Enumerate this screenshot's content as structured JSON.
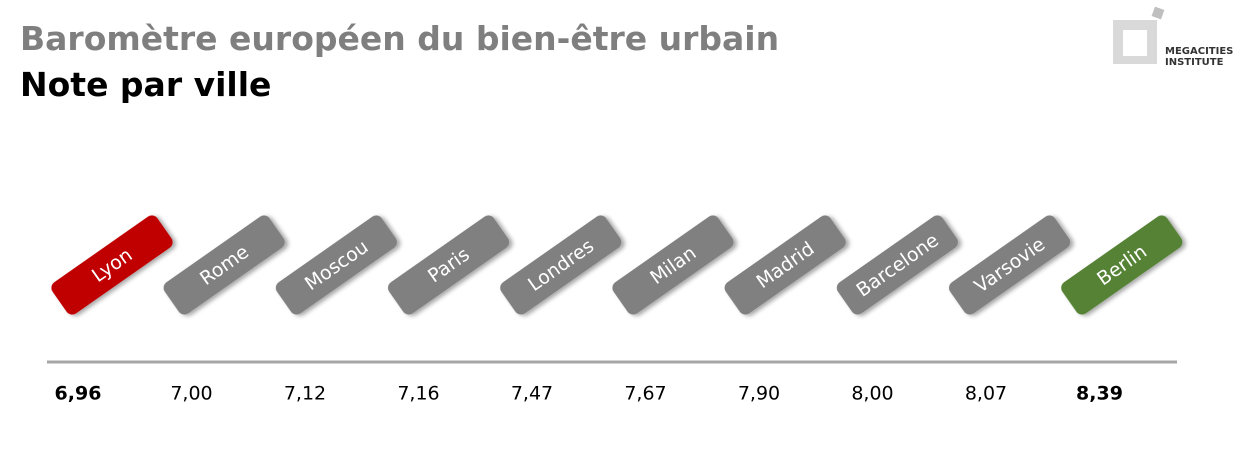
{
  "header": {
    "title": "Baromètre européen du bien-être urbain",
    "subtitle": "Note par ville"
  },
  "logo": {
    "lines": [
      "MEGACITIES",
      "INSTITUTE"
    ]
  },
  "cities": [
    {
      "name": "Lyon",
      "score": "6,96",
      "color": "#c00000"
    },
    {
      "name": "Rome",
      "score": "7,00",
      "color": "#808080"
    },
    {
      "name": "Moscou",
      "score": "7,12",
      "color": "#808080"
    },
    {
      "name": "Paris",
      "score": "7,16",
      "color": "#808080"
    },
    {
      "name": "Londres",
      "score": "7,47",
      "color": "#808080"
    },
    {
      "name": "Milan",
      "score": "7,67",
      "color": "#808080"
    },
    {
      "name": "Madrid",
      "score": "7,90",
      "color": "#808080"
    },
    {
      "name": "Barcelone",
      "score": "8,00",
      "color": "#808080"
    },
    {
      "name": "Varsovie",
      "score": "8,07",
      "color": "#808080"
    },
    {
      "name": "Berlin",
      "score": "8,39",
      "color": "#548235"
    }
  ]
}
